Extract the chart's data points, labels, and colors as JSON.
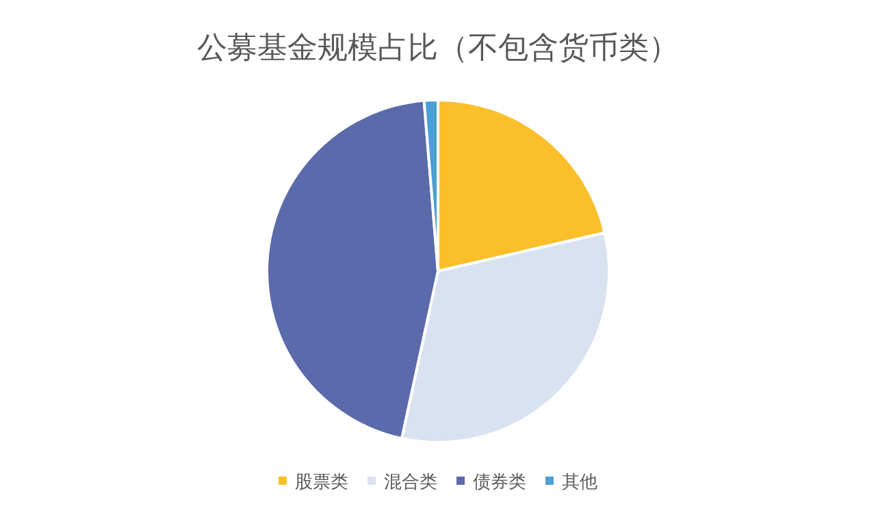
{
  "chart_data": {
    "type": "pie",
    "title": "公募基金规模占比（不包含货币类）",
    "categories": [
      "股票类",
      "混合类",
      "债券类",
      "其他"
    ],
    "values": [
      21.4,
      32,
      45.3,
      1.3
    ],
    "colors": [
      "#fbbf2a",
      "#d9e2f1",
      "#5b6aaa",
      "#4a9fd8"
    ],
    "legend": "bottom"
  }
}
